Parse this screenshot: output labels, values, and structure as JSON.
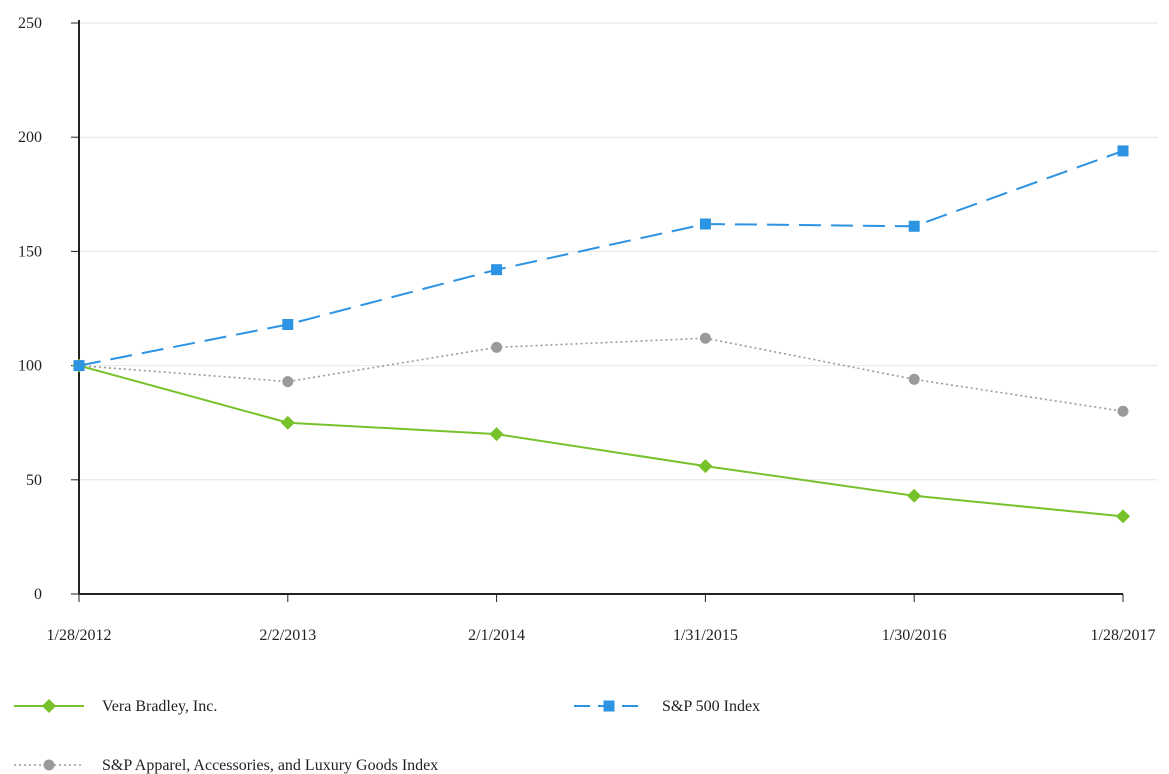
{
  "chart_data": {
    "type": "line",
    "title": "",
    "xlabel": "",
    "ylabel": "",
    "categories": [
      "1/28/2012",
      "2/2/2013",
      "2/1/2014",
      "1/31/2015",
      "1/30/2016",
      "1/28/2017"
    ],
    "ylim": [
      0,
      250
    ],
    "yticks": [
      0,
      50,
      100,
      150,
      200,
      250
    ],
    "grid": true,
    "legend_position": "bottom",
    "series": [
      {
        "name": "Vera Bradley, Inc.",
        "values": [
          100,
          75,
          70,
          56,
          43,
          34
        ],
        "color": "#77c22a",
        "marker": "diamond",
        "line_style": "solid"
      },
      {
        "name": "S&P 500 Index",
        "values": [
          100,
          118,
          142,
          162,
          161,
          194
        ],
        "color": "#2d93e3",
        "marker": "square",
        "line_style": "dashed"
      },
      {
        "name": "S&P Apparel, Accessories, and Luxury Goods Index",
        "values": [
          100,
          93,
          108,
          112,
          94,
          80
        ],
        "color": "#9a9a9a",
        "marker": "circle",
        "line_style": "dotted"
      }
    ]
  }
}
